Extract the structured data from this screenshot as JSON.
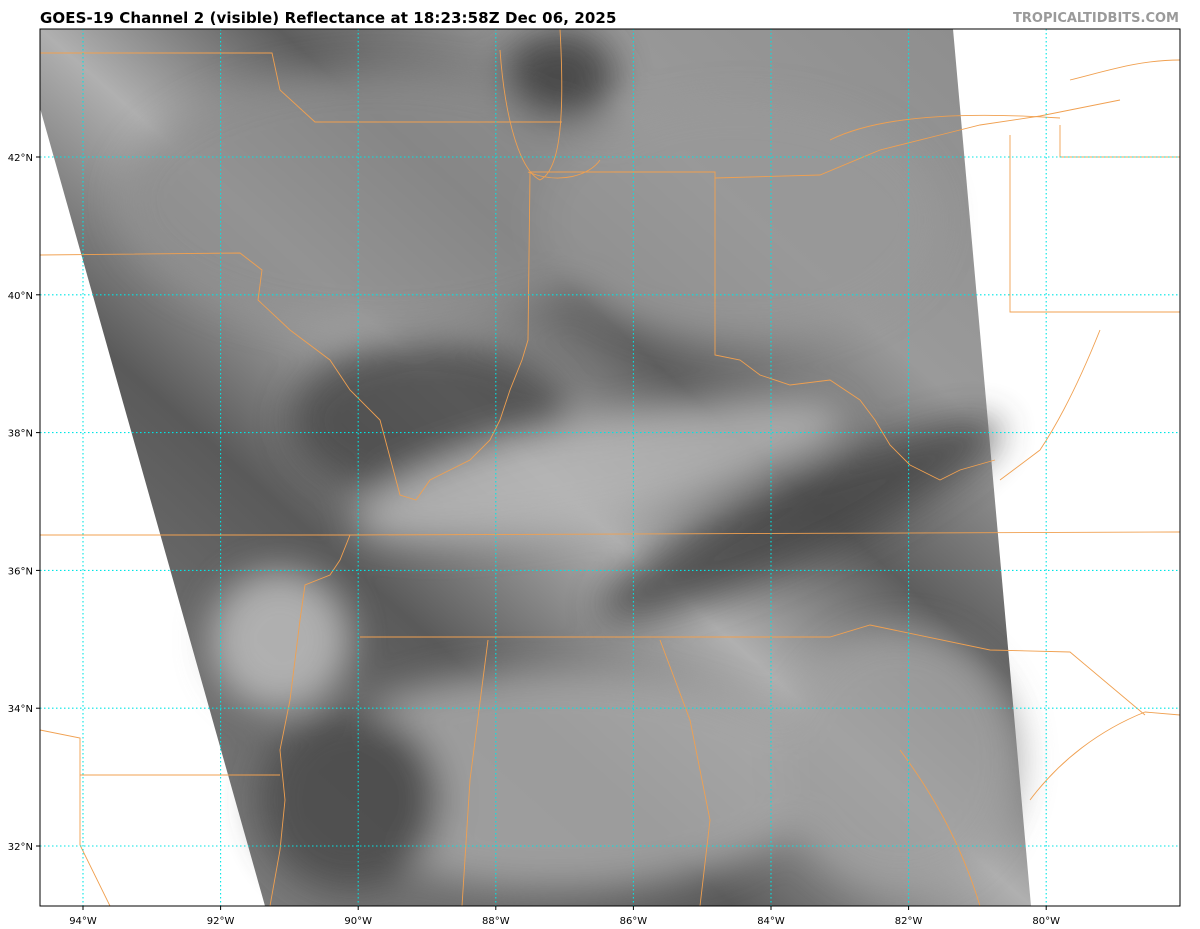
{
  "title": "GOES-19 Channel 2 (visible) Reflectance at 18:23:58Z Dec 06, 2025",
  "credit": "TROPICALTIDBITS.COM",
  "map": {
    "gridline_color": "#00e5e5",
    "border_color": "#f0a050",
    "longitude_ticks": [
      {
        "value": -94,
        "label": "94°W"
      },
      {
        "value": -92,
        "label": "92°W"
      },
      {
        "value": -90,
        "label": "90°W"
      },
      {
        "value": -88,
        "label": "88°W"
      },
      {
        "value": -86,
        "label": "86°W"
      },
      {
        "value": -84,
        "label": "84°W"
      },
      {
        "value": -82,
        "label": "82°W"
      },
      {
        "value": -80,
        "label": "80°W"
      }
    ],
    "latitude_ticks": [
      {
        "value": 42,
        "label": "42°N"
      },
      {
        "value": 40,
        "label": "40°N"
      },
      {
        "value": 38,
        "label": "38°N"
      },
      {
        "value": 36,
        "label": "36°N"
      },
      {
        "value": 34,
        "label": "34°N"
      },
      {
        "value": 32,
        "label": "32°N"
      }
    ]
  }
}
